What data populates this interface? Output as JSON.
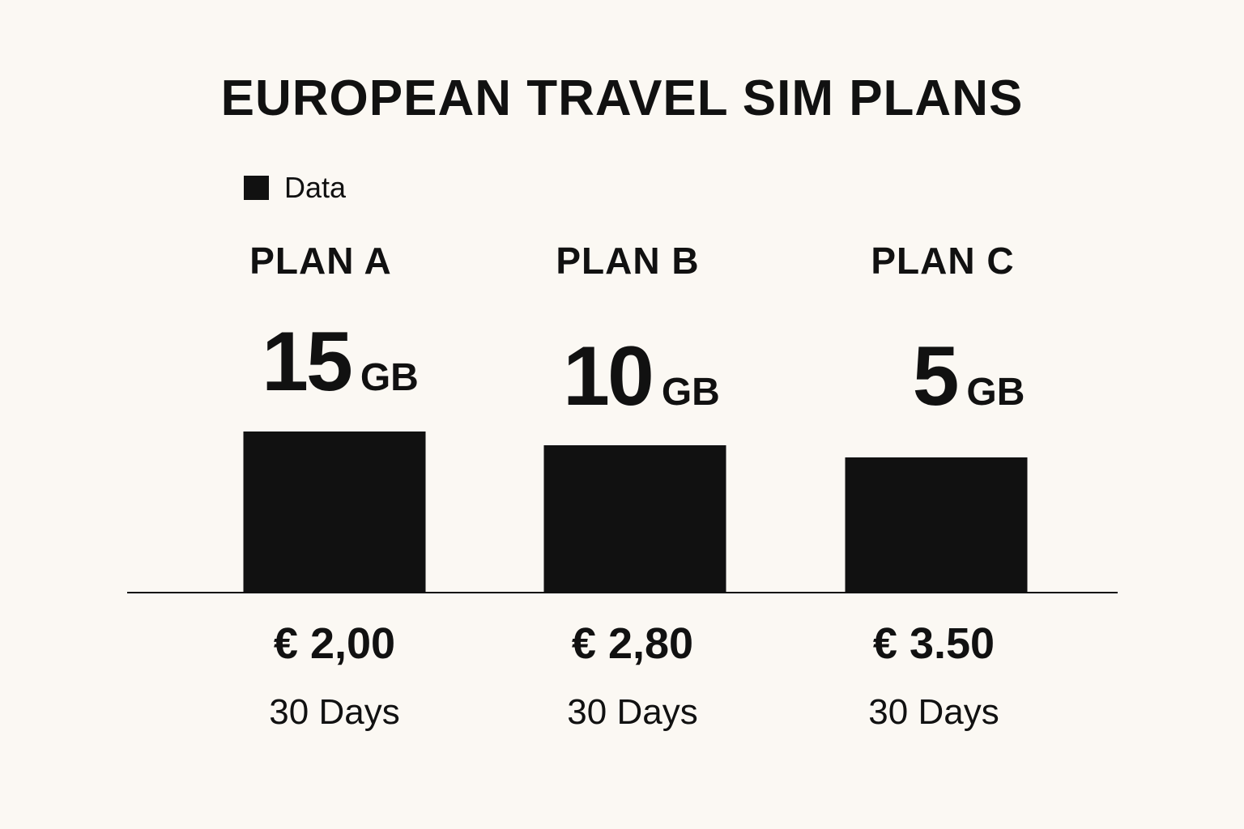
{
  "title": "EUROPEAN TRAVEL SIM PLANS",
  "colors": {
    "background": "#fbf8f3",
    "bar": "#111111",
    "text": "#111111"
  },
  "legend": {
    "label": "Data",
    "position": "top-left"
  },
  "chart_data": {
    "type": "bar",
    "title": "EUROPEAN TRAVEL SIM PLANS",
    "categories": [
      "PLAN A",
      "PLAN B",
      "PLAN C"
    ],
    "series": [
      {
        "name": "Data",
        "values": [
          15,
          10,
          5
        ],
        "unit": "GB"
      }
    ],
    "data_labels": [
      {
        "value": "15",
        "unit": "GB"
      },
      {
        "value": "10",
        "unit": "GB"
      },
      {
        "value": "5",
        "unit": "GB"
      }
    ],
    "prices": [
      "€ 2,00",
      "€ 2,80",
      "€ 3.50"
    ],
    "durations": [
      "30 Days",
      "30 Days",
      "30 Days"
    ],
    "grid": false,
    "legend": "top-left"
  }
}
